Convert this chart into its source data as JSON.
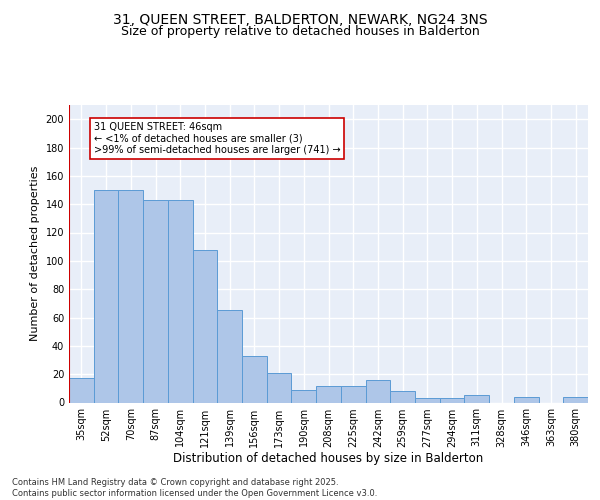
{
  "title": "31, QUEEN STREET, BALDERTON, NEWARK, NG24 3NS",
  "subtitle": "Size of property relative to detached houses in Balderton",
  "xlabel": "Distribution of detached houses by size in Balderton",
  "ylabel": "Number of detached properties",
  "categories": [
    "35sqm",
    "52sqm",
    "70sqm",
    "87sqm",
    "104sqm",
    "121sqm",
    "139sqm",
    "156sqm",
    "173sqm",
    "190sqm",
    "208sqm",
    "225sqm",
    "242sqm",
    "259sqm",
    "277sqm",
    "294sqm",
    "311sqm",
    "328sqm",
    "346sqm",
    "363sqm",
    "380sqm"
  ],
  "values": [
    17,
    150,
    150,
    143,
    143,
    108,
    65,
    33,
    21,
    9,
    12,
    12,
    16,
    8,
    3,
    3,
    5,
    0,
    4,
    0,
    4
  ],
  "bar_color": "#aec6e8",
  "bar_edge_color": "#5b9bd5",
  "background_color": "#e8eef8",
  "grid_color": "#ffffff",
  "annotation_box_text": "31 QUEEN STREET: 46sqm\n← <1% of detached houses are smaller (3)\n>99% of semi-detached houses are larger (741) →",
  "annotation_box_color": "#ffffff",
  "annotation_box_edge_color": "#cc0000",
  "vline_color": "#cc0000",
  "footer": "Contains HM Land Registry data © Crown copyright and database right 2025.\nContains public sector information licensed under the Open Government Licence v3.0.",
  "ylim": [
    0,
    210
  ],
  "yticks": [
    0,
    20,
    40,
    60,
    80,
    100,
    120,
    140,
    160,
    180,
    200
  ],
  "title_fontsize": 10,
  "subtitle_fontsize": 9,
  "xlabel_fontsize": 8.5,
  "ylabel_fontsize": 8,
  "tick_fontsize": 7,
  "annotation_fontsize": 7,
  "footer_fontsize": 6
}
